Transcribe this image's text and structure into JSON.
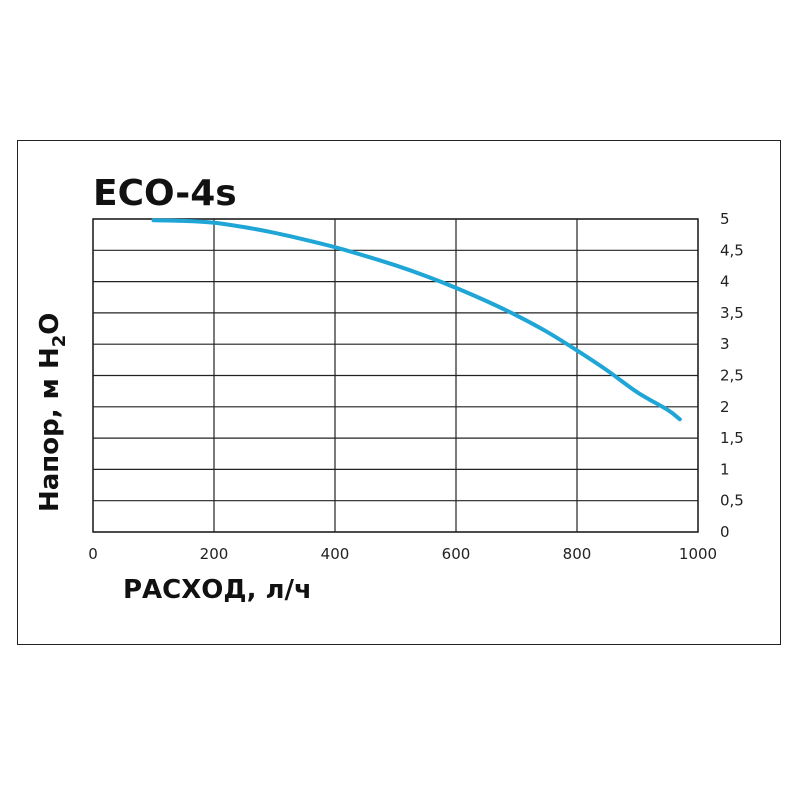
{
  "chart_data": {
    "type": "line",
    "title": "ECO-4s",
    "xlabel": "РАСХОД, л/ч",
    "ylabel": {
      "main": "Напор, м H",
      "sub": "2",
      "tail": "O"
    },
    "x_ticks": [
      "0",
      "200",
      "400",
      "600",
      "800",
      "1000"
    ],
    "y_ticks": [
      "0",
      "0,5",
      "1",
      "1,5",
      "2",
      "2,5",
      "3",
      "3,5",
      "4",
      "4,5",
      "5"
    ],
    "xlim": [
      0,
      1000
    ],
    "ylim": [
      0,
      5
    ],
    "y_axis_side": "right",
    "grid": true,
    "series_color": "#1fa6d6",
    "series": [
      {
        "x": [
          100,
          150,
          200,
          250,
          300,
          350,
          400,
          450,
          500,
          550,
          600,
          650,
          700,
          750,
          800,
          850,
          900,
          950,
          970
        ],
        "y": [
          4.98,
          4.97,
          4.94,
          4.87,
          4.78,
          4.67,
          4.55,
          4.41,
          4.26,
          4.09,
          3.9,
          3.69,
          3.46,
          3.2,
          2.9,
          2.58,
          2.23,
          1.95,
          1.8
        ]
      }
    ]
  }
}
